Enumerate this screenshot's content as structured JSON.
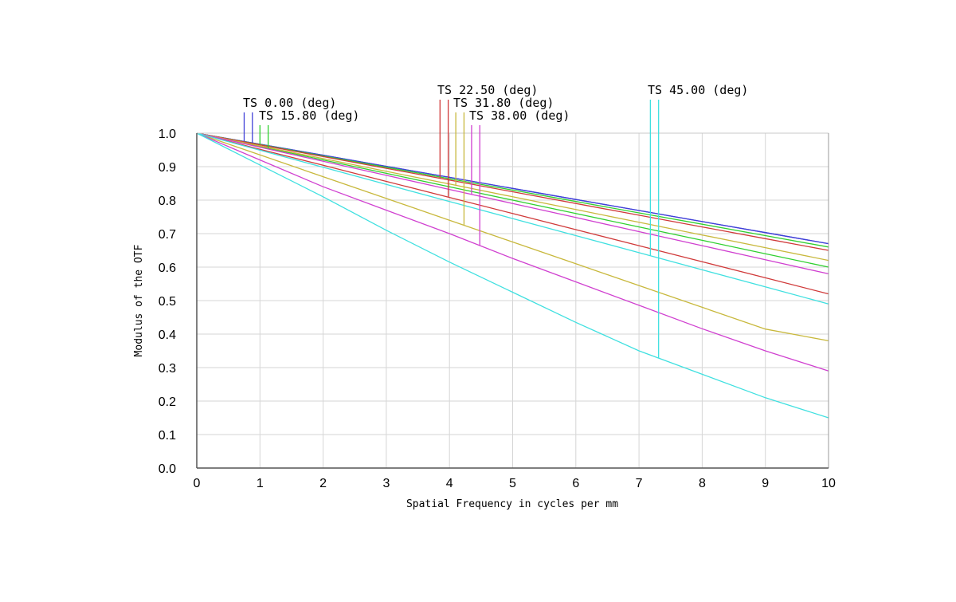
{
  "chart_data": {
    "type": "line",
    "title": "",
    "xlabel": "Spatial Frequency in cycles per mm",
    "ylabel": "Modulus of the OTF",
    "xlim": [
      0,
      10
    ],
    "ylim": [
      0,
      1
    ],
    "x_ticks": [
      "0",
      "1",
      "2",
      "3",
      "4",
      "5",
      "6",
      "7",
      "8",
      "9",
      "10"
    ],
    "y_ticks": [
      "0.0",
      "0.1",
      "0.2",
      "0.3",
      "0.4",
      "0.5",
      "0.6",
      "0.7",
      "0.8",
      "0.9",
      "1.0"
    ],
    "grid": true,
    "x": [
      0,
      1,
      2,
      3,
      4,
      5,
      6,
      7,
      8,
      9,
      10
    ],
    "fields": [
      {
        "label": "TS 0.00 (deg)",
        "color_t": "#4040d8",
        "color_s": "#4040d8",
        "marker_x": [
          0.75,
          0.88
        ],
        "tangential": [
          1.0,
          0.967,
          0.934,
          0.901,
          0.868,
          0.835,
          0.802,
          0.769,
          0.736,
          0.703,
          0.67
        ],
        "sagittal": [
          1.0,
          0.967,
          0.934,
          0.901,
          0.868,
          0.835,
          0.802,
          0.769,
          0.736,
          0.703,
          0.67
        ]
      },
      {
        "label": "TS 15.80 (deg)",
        "color_t": "#30d030",
        "color_s": "#30d030",
        "marker_x": [
          1.0,
          1.13
        ],
        "tangential": [
          1.0,
          0.966,
          0.932,
          0.898,
          0.864,
          0.83,
          0.796,
          0.762,
          0.728,
          0.694,
          0.66
        ],
        "sagittal": [
          1.0,
          0.96,
          0.92,
          0.88,
          0.84,
          0.8,
          0.76,
          0.72,
          0.68,
          0.64,
          0.6
        ]
      },
      {
        "label": "TS 22.50 (deg)",
        "color_t": "#d03a3a",
        "color_s": "#d03a3a",
        "marker_x": [
          3.85,
          3.98
        ],
        "tangential": [
          1.0,
          0.965,
          0.93,
          0.895,
          0.86,
          0.825,
          0.79,
          0.755,
          0.72,
          0.685,
          0.65
        ],
        "sagittal": [
          1.0,
          0.952,
          0.904,
          0.856,
          0.808,
          0.76,
          0.712,
          0.664,
          0.616,
          0.568,
          0.52
        ]
      },
      {
        "label": "TS 31.80 (deg)",
        "color_t": "#c8b83c",
        "color_s": "#c8b83c",
        "marker_x": [
          4.1,
          4.23
        ],
        "tangential": [
          1.0,
          0.962,
          0.924,
          0.886,
          0.848,
          0.81,
          0.772,
          0.734,
          0.696,
          0.658,
          0.62
        ],
        "sagittal": [
          1.0,
          0.935,
          0.87,
          0.805,
          0.74,
          0.675,
          0.61,
          0.545,
          0.48,
          0.415,
          0.38
        ]
      },
      {
        "label": "TS 38.00 (deg)",
        "color_t": "#d040d0",
        "color_s": "#d040d0",
        "marker_x": [
          4.35,
          4.48
        ],
        "tangential": [
          1.0,
          0.958,
          0.916,
          0.874,
          0.832,
          0.79,
          0.748,
          0.706,
          0.664,
          0.622,
          0.58
        ],
        "sagittal": [
          1.0,
          0.92,
          0.84,
          0.77,
          0.7,
          0.626,
          0.556,
          0.486,
          0.416,
          0.35,
          0.29
        ]
      },
      {
        "label": "TS 45.00 (deg)",
        "color_t": "#40e0e0",
        "color_s": "#40e0e0",
        "marker_x": [
          7.18,
          7.31
        ],
        "tangential": [
          1.0,
          0.949,
          0.898,
          0.847,
          0.796,
          0.745,
          0.694,
          0.643,
          0.592,
          0.541,
          0.49
        ],
        "sagittal": [
          1.0,
          0.905,
          0.81,
          0.71,
          0.615,
          0.525,
          0.435,
          0.35,
          0.28,
          0.21,
          0.15
        ]
      }
    ]
  }
}
